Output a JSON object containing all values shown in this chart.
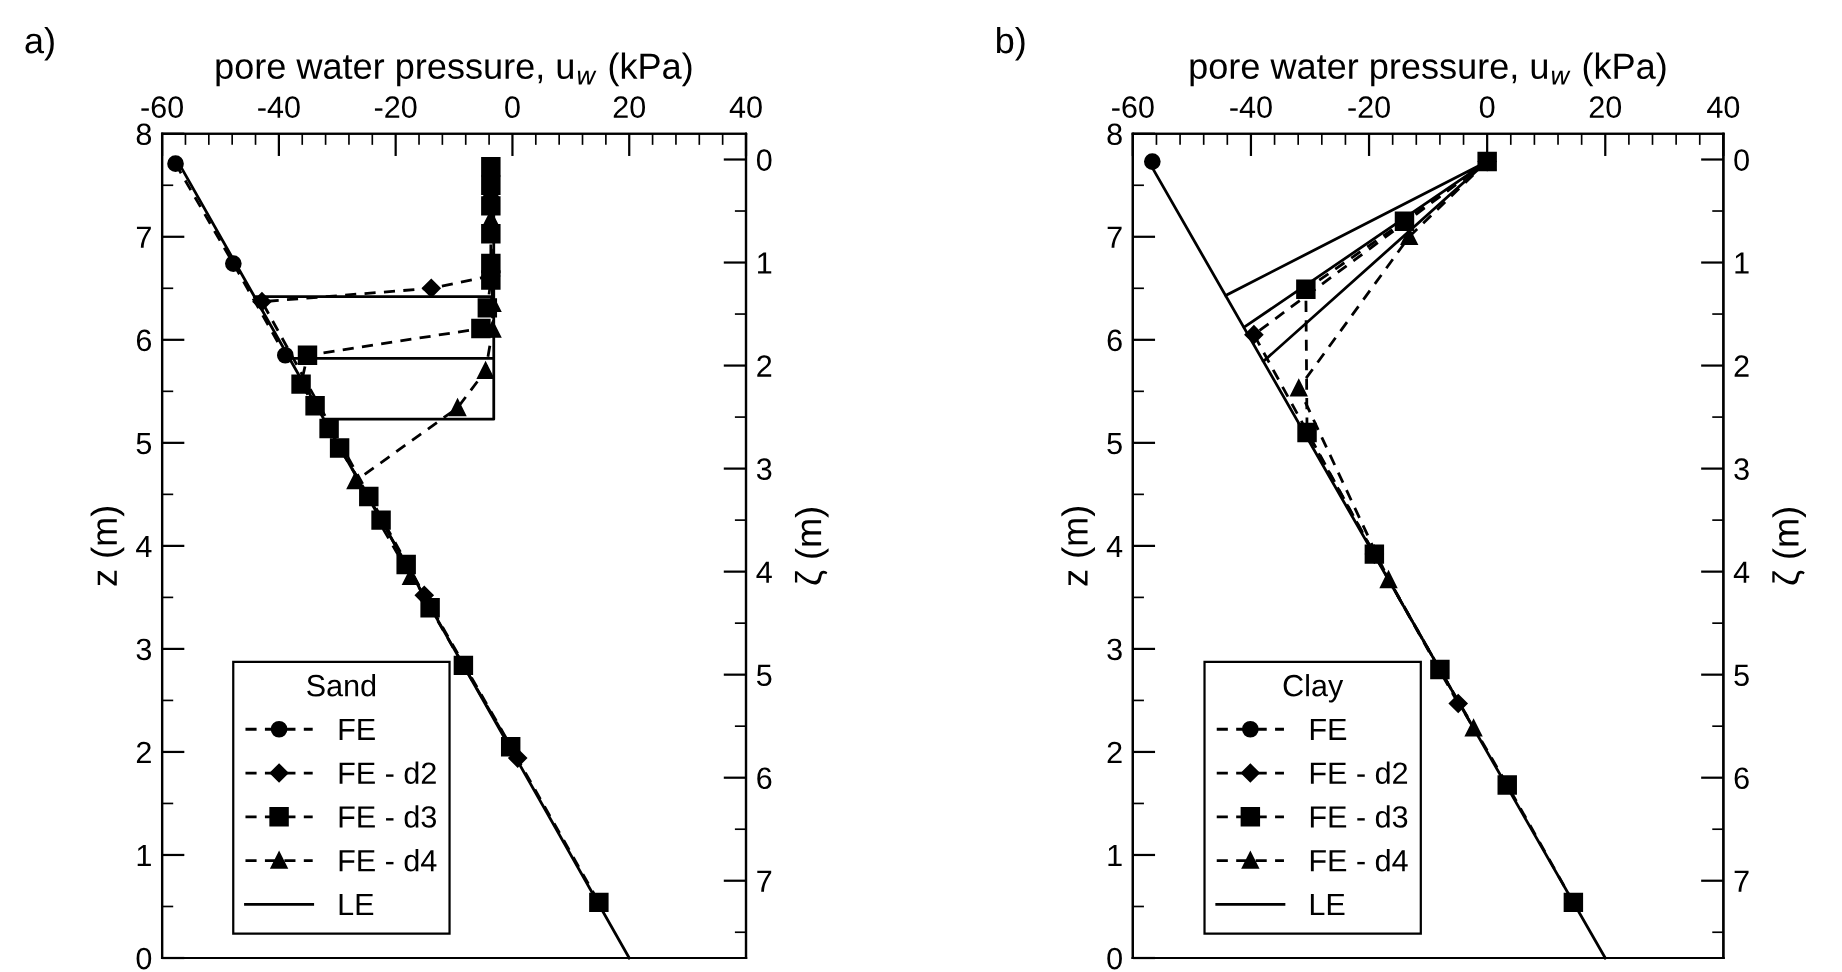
{
  "chart_data": [
    {
      "type": "line",
      "annotations": [
        "a)"
      ],
      "xlabel": "pore water pressure, u$_{w}$ (kPa)",
      "ylabel": "z (m)",
      "y2label": "ζ (m)",
      "legend_title": "Sand",
      "legend": "bottom left",
      "xlim": [
        -60,
        40
      ],
      "xticks": [
        -60,
        {
          "value": -56,
          "label": null
        },
        {
          "value": -52,
          "label": null
        },
        {
          "value": -48,
          "label": null
        },
        {
          "value": -44,
          "label": null
        },
        -40,
        {
          "value": -36,
          "label": null
        },
        {
          "value": -32,
          "label": null
        },
        {
          "value": -28,
          "label": null
        },
        {
          "value": -24,
          "label": null
        },
        -20,
        {
          "value": -16,
          "label": null
        },
        {
          "value": -12,
          "label": null
        },
        {
          "value": -8,
          "label": null
        },
        {
          "value": -4,
          "label": null
        },
        0,
        {
          "value": 4,
          "label": null
        },
        {
          "value": 8,
          "label": null
        },
        {
          "value": 12,
          "label": null
        },
        {
          "value": 16,
          "label": null
        },
        20,
        {
          "value": 24,
          "label": null
        },
        {
          "value": 28,
          "label": null
        },
        {
          "value": 32,
          "label": null
        },
        {
          "value": 36,
          "label": null
        },
        40
      ],
      "ylim": [
        0,
        8
      ],
      "yticks": [
        0,
        {
          "value": 0.5,
          "label": null
        },
        1,
        {
          "value": 1.5,
          "label": null
        },
        2,
        {
          "value": 2.5,
          "label": null
        },
        3,
        {
          "value": 3.5,
          "label": null
        },
        4,
        {
          "value": 4.5,
          "label": null
        },
        5,
        {
          "value": 5.5,
          "label": null
        },
        6,
        {
          "value": 6.5,
          "label": null
        },
        7,
        {
          "value": 7.5,
          "label": null
        },
        8
      ],
      "y2lim": [
        7.75,
        -0.25
      ],
      "y2ticks": [
        0,
        {
          "value": 0.5,
          "label": null
        },
        1,
        {
          "value": 1.5,
          "label": null
        },
        2,
        {
          "value": 2.5,
          "label": null
        },
        3,
        {
          "value": 3.5,
          "label": null
        },
        4,
        {
          "value": 4.5,
          "label": null
        },
        5,
        {
          "value": 5.5,
          "label": null
        },
        6,
        {
          "value": 6.5,
          "label": null
        },
        7,
        {
          "value": 7.5,
          "label": null
        }
      ],
      "grid": false,
      "series": [
        {
          "name": "FE",
          "color": "#000000",
          "marker": "circle",
          "line_style": "dashed",
          "x": [
            -57.7,
            -47.8,
            -38.9
          ],
          "values": [
            7.71,
            6.74,
            5.85
          ]
        },
        {
          "name": "FE - d2",
          "color": "#000000",
          "marker": "diamond",
          "line_style": "dashed",
          "x": [
            -3.7,
            -13.9,
            -42.9,
            -15.1,
            0.9
          ],
          "values": [
            6.62,
            6.5,
            6.37,
            3.52,
            1.94
          ]
        },
        {
          "name": "FE - d3",
          "color": "#000000",
          "marker": "square",
          "line_style": "dashed",
          "x": [
            -3.7,
            -3.7,
            -3.7,
            -3.7,
            -3.7,
            -3.7,
            -4.3,
            -5.4,
            -35.1,
            -36.2,
            -33.8,
            -31.4,
            -29.6,
            -24.6,
            -22.5,
            -18.2,
            -14.1,
            -8.4,
            -0.3,
            14.8
          ],
          "values": [
            7.68,
            7.5,
            7.3,
            7.03,
            6.74,
            6.58,
            6.31,
            6.11,
            5.85,
            5.57,
            5.36,
            5.14,
            4.95,
            4.48,
            4.25,
            3.82,
            3.4,
            2.84,
            2.05,
            0.54
          ]
        },
        {
          "name": "FE - d4",
          "color": "#000000",
          "marker": "triangle",
          "line_style": "dashed",
          "x": [
            -3.7,
            -3.7,
            -3.4,
            -3.4,
            -4.6,
            -9.4,
            -26.9,
            -17.4
          ],
          "values": [
            7.45,
            7.17,
            6.35,
            6.1,
            5.7,
            5.34,
            4.63,
            3.7
          ]
        },
        {
          "name": "LE",
          "color": "#000000",
          "marker": "none",
          "line_style": "solid",
          "x": [
            20,
            -57,
            null,
            -44.2,
            -3.2,
            null,
            -38.2,
            -3.2,
            null,
            -32.3,
            -3.2,
            -3.2
          ],
          "values": [
            0,
            7.7,
            null,
            6.42,
            6.42,
            null,
            5.82,
            5.82,
            null,
            5.23,
            5.23,
            7.7
          ]
        }
      ]
    },
    {
      "type": "line",
      "annotations": [
        "b)"
      ],
      "xlabel": "pore water pressure, u$_{w}$ (kPa)",
      "ylabel": "z (m)",
      "y2label": "ζ (m)",
      "legend_title": "Clay",
      "legend": "bottom left",
      "xlim": [
        -60,
        40
      ],
      "xticks": [
        -60,
        {
          "value": -56,
          "label": null
        },
        {
          "value": -52,
          "label": null
        },
        {
          "value": -48,
          "label": null
        },
        {
          "value": -44,
          "label": null
        },
        -40,
        {
          "value": -36,
          "label": null
        },
        {
          "value": -32,
          "label": null
        },
        {
          "value": -28,
          "label": null
        },
        {
          "value": -24,
          "label": null
        },
        -20,
        {
          "value": -16,
          "label": null
        },
        {
          "value": -12,
          "label": null
        },
        {
          "value": -8,
          "label": null
        },
        {
          "value": -4,
          "label": null
        },
        0,
        {
          "value": 4,
          "label": null
        },
        {
          "value": 8,
          "label": null
        },
        {
          "value": 12,
          "label": null
        },
        {
          "value": 16,
          "label": null
        },
        20,
        {
          "value": 24,
          "label": null
        },
        {
          "value": 28,
          "label": null
        },
        {
          "value": 32,
          "label": null
        },
        {
          "value": 36,
          "label": null
        },
        40
      ],
      "ylim": [
        0,
        8
      ],
      "yticks": [
        0,
        {
          "value": 0.5,
          "label": null
        },
        1,
        {
          "value": 1.5,
          "label": null
        },
        2,
        {
          "value": 2.5,
          "label": null
        },
        3,
        {
          "value": 3.5,
          "label": null
        },
        4,
        {
          "value": 4.5,
          "label": null
        },
        5,
        {
          "value": 5.5,
          "label": null
        },
        6,
        {
          "value": 6.5,
          "label": null
        },
        7,
        {
          "value": 7.5,
          "label": null
        },
        8
      ],
      "y2lim": [
        7.75,
        -0.25
      ],
      "y2ticks": [
        0,
        {
          "value": 0.5,
          "label": null
        },
        1,
        {
          "value": 1.5,
          "label": null
        },
        2,
        {
          "value": 2.5,
          "label": null
        },
        3,
        {
          "value": 3.5,
          "label": null
        },
        4,
        {
          "value": 4.5,
          "label": null
        },
        5,
        {
          "value": 5.5,
          "label": null
        },
        6,
        {
          "value": 6.5,
          "label": null
        },
        7,
        {
          "value": 7.5,
          "label": null
        }
      ],
      "grid": false,
      "series": [
        {
          "name": "FE",
          "color": "#000000",
          "marker": "circle",
          "line_style": "dashed",
          "x": [
            -56.7
          ],
          "values": [
            7.73
          ]
        },
        {
          "name": "FE - d2",
          "color": "#000000",
          "marker": "diamond",
          "line_style": "dashed",
          "x": [
            0,
            -39.5,
            -19.1,
            -4.9
          ],
          "values": [
            7.73,
            6.05,
            3.92,
            2.47
          ]
        },
        {
          "name": "FE - d3",
          "color": "#000000",
          "marker": "square",
          "line_style": "dashed",
          "x": [
            0,
            -14.0,
            -30.7,
            -30.5,
            -19.1,
            -8.0,
            3.4,
            14.6
          ],
          "values": [
            7.73,
            7.15,
            6.49,
            5.1,
            3.92,
            2.8,
            1.68,
            0.54
          ]
        },
        {
          "name": "FE - d4",
          "color": "#000000",
          "marker": "triangle",
          "line_style": "dashed",
          "x": [
            0,
            -13.2,
            -31.9,
            -16.7,
            -2.3
          ],
          "values": [
            7.73,
            7.0,
            5.53,
            3.67,
            2.23
          ]
        },
        {
          "name": "LE",
          "color": "#000000",
          "marker": "none",
          "line_style": "solid",
          "x": [
            20,
            -57,
            null,
            -44.3,
            0,
            -41.2,
            null,
            0,
            -37.9
          ],
          "values": [
            0,
            7.7,
            null,
            6.43,
            7.73,
            6.12,
            null,
            7.73,
            5.79
          ]
        }
      ]
    }
  ]
}
